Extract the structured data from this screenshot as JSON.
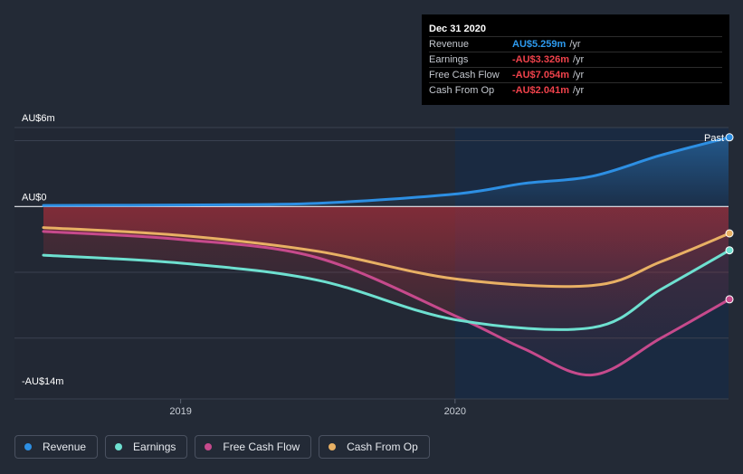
{
  "chart_data": {
    "type": "area",
    "title": "",
    "x_unit": "year",
    "y_unit": "AU$m",
    "ylim": [
      -14,
      6
    ],
    "xlim": [
      2018.5,
      2020.99
    ],
    "y_tick_labels": [
      {
        "value": 6,
        "label": "AU$6m"
      },
      {
        "value": 0,
        "label": "AU$0"
      },
      {
        "value": -14,
        "label": "-AU$14m"
      }
    ],
    "y_gridlines": [
      5,
      0,
      -5,
      -10
    ],
    "x_ticks": [
      {
        "value": 2019,
        "label": "2019"
      },
      {
        "value": 2020,
        "label": "2020"
      }
    ],
    "past_label": "Past",
    "past_region_start": 2020,
    "series": [
      {
        "key": "cashfromop",
        "name": "Cash From Op",
        "color": "#e8b064",
        "x": [
          2018.5,
          2019.0,
          2019.5,
          2020.0,
          2020.5,
          2020.75,
          2021.0
        ],
        "values": [
          -1.6,
          -2.2,
          -3.4,
          -5.5,
          -6.0,
          -4.2,
          -2.041
        ]
      },
      {
        "key": "fcf",
        "name": "Free Cash Flow",
        "color": "#c64a8c",
        "x": [
          2018.5,
          2019.0,
          2019.5,
          2020.0,
          2020.25,
          2020.5,
          2020.75,
          2021.0
        ],
        "values": [
          -1.9,
          -2.5,
          -3.9,
          -8.3,
          -10.8,
          -12.8,
          -10.0,
          -7.054
        ]
      },
      {
        "key": "earnings",
        "name": "Earnings",
        "color": "#6ee0d0",
        "x": [
          2018.5,
          2019.0,
          2019.5,
          2020.0,
          2020.5,
          2020.75,
          2021.0
        ],
        "values": [
          -3.7,
          -4.3,
          -5.6,
          -8.6,
          -9.2,
          -6.3,
          -3.326
        ]
      },
      {
        "key": "revenue",
        "name": "Revenue",
        "color": "#2d8fe3",
        "x": [
          2018.5,
          2019.0,
          2019.5,
          2020.0,
          2020.25,
          2020.5,
          2020.75,
          2021.0
        ],
        "values": [
          0.08,
          0.12,
          0.25,
          0.95,
          1.75,
          2.3,
          3.9,
          5.259
        ]
      }
    ]
  },
  "tooltip": {
    "date": "Dec 31 2020",
    "rows": [
      {
        "label": "Revenue",
        "value": "AU$5.259m",
        "unit": "/yr",
        "color": "#2d9bf0"
      },
      {
        "label": "Earnings",
        "value": "-AU$3.326m",
        "unit": "/yr",
        "color": "#f0424b"
      },
      {
        "label": "Free Cash Flow",
        "value": "-AU$7.054m",
        "unit": "/yr",
        "color": "#f0424b"
      },
      {
        "label": "Cash From Op",
        "value": "-AU$2.041m",
        "unit": "/yr",
        "color": "#f0424b"
      }
    ]
  },
  "legend": [
    {
      "key": "revenue",
      "label": "Revenue",
      "color": "#2d8fe3"
    },
    {
      "key": "earnings",
      "label": "Earnings",
      "color": "#6ee0d0"
    },
    {
      "key": "fcf",
      "label": "Free Cash Flow",
      "color": "#c64a8c"
    },
    {
      "key": "cashfromop",
      "label": "Cash From Op",
      "color": "#e8b064"
    }
  ]
}
